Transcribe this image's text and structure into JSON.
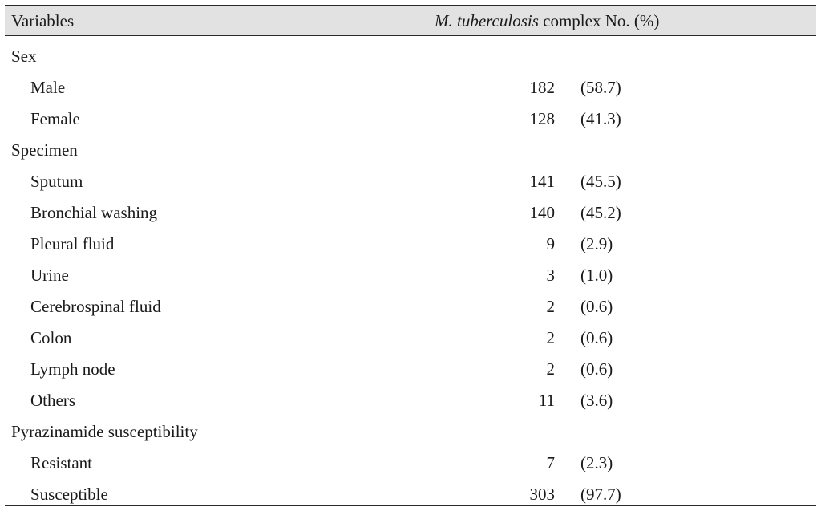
{
  "header": {
    "variables": "Variables",
    "col_italic": "M. tuberculosis",
    "col_rest": " complex No. (%)"
  },
  "rows": [
    {
      "type": "category",
      "label": "Sex"
    },
    {
      "type": "item",
      "label": "Male",
      "n": "182",
      "pct": "(58.7)"
    },
    {
      "type": "item",
      "label": "Female",
      "n": "128",
      "pct": "(41.3)"
    },
    {
      "type": "category",
      "label": "Specimen"
    },
    {
      "type": "item",
      "label": "Sputum",
      "n": "141",
      "pct": "(45.5)"
    },
    {
      "type": "item",
      "label": "Bronchial washing",
      "n": "140",
      "pct": "(45.2)"
    },
    {
      "type": "item",
      "label": "Pleural fluid",
      "n": "9",
      "pct": "(2.9)"
    },
    {
      "type": "item",
      "label": "Urine",
      "n": "3",
      "pct": "(1.0)"
    },
    {
      "type": "item",
      "label": "Cerebrospinal fluid",
      "n": "2",
      "pct": "(0.6)"
    },
    {
      "type": "item",
      "label": "Colon",
      "n": "2",
      "pct": "(0.6)"
    },
    {
      "type": "item",
      "label": "Lymph node",
      "n": "2",
      "pct": "(0.6)"
    },
    {
      "type": "item",
      "label": "Others",
      "n": "11",
      "pct": "(3.6)"
    },
    {
      "type": "category",
      "label": "Pyrazinamide susceptibility"
    },
    {
      "type": "item",
      "label": "Resistant",
      "n": "7",
      "pct": "(2.3)"
    },
    {
      "type": "item",
      "label": "Susceptible",
      "n": "303",
      "pct": "(97.7)"
    }
  ]
}
